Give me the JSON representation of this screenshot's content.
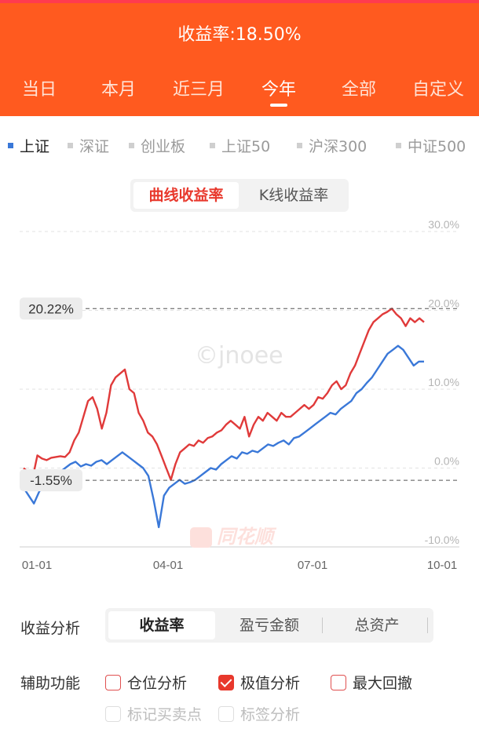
{
  "header": {
    "return_title": "收益率:18.50%",
    "period_tabs": [
      "当日",
      "本月",
      "近三月",
      "今年",
      "全部",
      "自定义"
    ],
    "active_period": "今年"
  },
  "index_tabs": [
    {
      "label": "上证",
      "active": true
    },
    {
      "label": "深证",
      "active": false
    },
    {
      "label": "创业板",
      "active": false
    },
    {
      "label": "上证50",
      "active": false
    },
    {
      "label": "沪深300",
      "active": false
    },
    {
      "label": "中证500",
      "active": false
    }
  ],
  "chart_toggle": {
    "curve": "曲线收益率",
    "kline": "K线收益率",
    "active": "曲线收益率"
  },
  "chart_data": {
    "type": "line",
    "y_ticks": [
      "30.0%",
      "20.0%",
      "10.0%",
      "0.0%",
      "-10.0%"
    ],
    "ylim": [
      -10,
      30
    ],
    "x_ticks": [
      "01-01",
      "04-01",
      "07-01",
      "10-01"
    ],
    "max_label": "20.22%",
    "min_label": "-1.55%",
    "max_value": 20.22,
    "min_value": -1.55,
    "colors": {
      "portfolio": "#e03a3a",
      "index": "#3a78d8"
    },
    "series": [
      {
        "values": [
          0,
          -0.5,
          -1.2,
          1.6,
          1.2,
          1.0,
          1.3,
          1.4,
          1.5,
          1.4,
          2.0,
          3.5,
          4.5,
          6.5,
          8.5,
          9.0,
          7.5,
          5.0,
          7.0,
          10.5,
          11.5,
          12.0,
          12.5,
          10.0,
          9.5,
          7.0,
          6.0,
          4.5,
          4.0,
          3.0,
          1.5,
          0.0,
          -1.5,
          0.5,
          2.0,
          2.5,
          3.0,
          2.8,
          3.5,
          3.2,
          3.8,
          4.0,
          4.5,
          4.8,
          5.5,
          6.0,
          5.5,
          5.0,
          6.5,
          4.0,
          5.5,
          6.5,
          6.0,
          7.0,
          6.5,
          6.0,
          7.0,
          6.5,
          6.5,
          7.0,
          7.5,
          8.0,
          7.5,
          8.0,
          9.0,
          8.8,
          9.5,
          10.5,
          11.0,
          10.0,
          10.5,
          12.0,
          13.0,
          14.5,
          16.0,
          17.5,
          18.5,
          19.0,
          19.5,
          19.8,
          20.22,
          19.5,
          19.0,
          18.0,
          19.0,
          18.5,
          19.0,
          18.5
        ]
      },
      {
        "values": [
          -2.5,
          -3.5,
          -4.5,
          -3.0,
          -2.0,
          -1.5,
          -1.2,
          -0.5,
          0,
          0.5,
          0.8,
          0.2,
          0.5,
          0.3,
          0.8,
          1.0,
          0.5,
          1.0,
          1.5,
          2.0,
          1.5,
          1.0,
          0.5,
          0,
          -1.0,
          -4.0,
          -7.5,
          -3.5,
          -2.5,
          -2.0,
          -1.5,
          -2.0,
          -1.8,
          -1.5,
          -1.0,
          -0.5,
          0.0,
          -0.2,
          0.5,
          1.0,
          1.5,
          1.2,
          2.0,
          1.8,
          2.2,
          2.0,
          2.5,
          3.0,
          2.8,
          3.2,
          3.5,
          3.0,
          3.8,
          4.0,
          4.5,
          5.0,
          5.5,
          6.0,
          6.5,
          7.0,
          6.8,
          7.5,
          8.0,
          8.5,
          9.5,
          10.0,
          10.8,
          11.5,
          12.5,
          13.5,
          14.5,
          15.0,
          15.5,
          15.0,
          14.0,
          13.0,
          13.5,
          13.5
        ]
      }
    ]
  },
  "chart_overlay": {
    "watermark": "©jnoee",
    "logo": "同花顺"
  },
  "analysis": {
    "label": "收益分析",
    "tabs": [
      "收益率",
      "盈亏金额",
      "总资产"
    ],
    "active": "收益率"
  },
  "aux": {
    "label": "辅助功能",
    "options": [
      {
        "label": "仓位分析",
        "checked": false,
        "disabled": false
      },
      {
        "label": "极值分析",
        "checked": true,
        "disabled": false
      },
      {
        "label": "最大回撤",
        "checked": false,
        "disabled": false
      },
      {
        "label": "标记买卖点",
        "checked": false,
        "disabled": true
      },
      {
        "label": "标签分析",
        "checked": false,
        "disabled": true
      }
    ]
  }
}
